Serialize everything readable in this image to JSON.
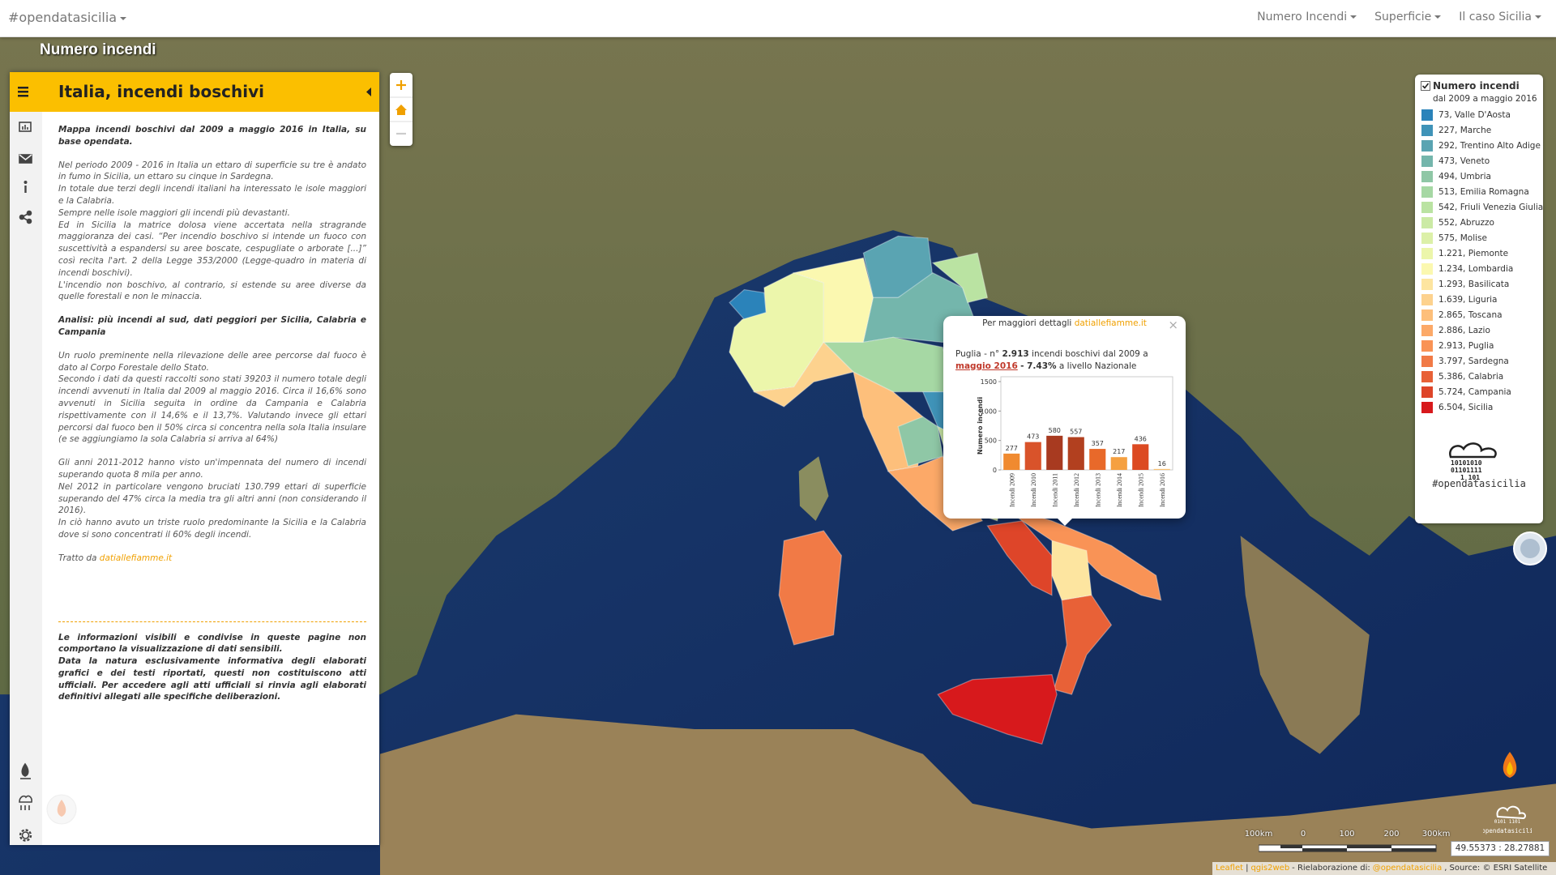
{
  "navbar": {
    "brand": "#opendatasicilia",
    "menu": [
      "Numero Incendi",
      "Superficie",
      "Il caso Sicilia"
    ]
  },
  "map_title": "Numero incendi",
  "sidebar": {
    "title": "Italia, incendi boschivi",
    "intro": "Mappa incendi boschivi dal 2009 a maggio 2016 in Italia, su base opendata.",
    "paragraph_1": [
      "Nel periodo 2009 - 2016 in Italia un ettaro di superficie su tre è andato in fumo in Sicilia, un ettaro su cinque in Sardegna.",
      "In totale due terzi degli incendi italiani ha interessato le isole maggiori e la Calabria.",
      "Sempre nelle isole maggiori gli incendi più devastanti.",
      "Ed in Sicilia la matrice dolosa viene accertata nella stragrande maggioranza dei casi. “Per incendio boschivo si intende un fuoco con suscettività a espandersi su aree boscate, cespugliate o arborate [...]” così recita l'art. 2 della Legge 353/2000 (Legge-quadro in materia di incendi boschivi).",
      "L'incendio non boschivo, al contrario, si estende su aree diverse da quelle forestali e non le minaccia."
    ],
    "heading": "Analisi: più incendi al sud, dati peggiori per Sicilia, Calabria e Campania",
    "paragraph_2": [
      "Un ruolo preminente nella rilevazione delle aree percorse dal fuoco è dato al Corpo Forestale dello Stato.",
      "Secondo i dati da questi raccolti sono stati 39203 il numero totale degli incendi avvenuti in Italia dal 2009 al maggio 2016. Circa il 16,6% sono avvenuti in Sicilia seguita in ordine da Campania e Calabria rispettivamente con il 14,6% e il 13,7%. Valutando invece gli ettari percorsi dal fuoco ben il 50% circa si concentra nella sola Italia insulare (e se aggiungiamo la sola Calabria si arriva al 64%)"
    ],
    "paragraph_3": [
      "Gli anni 2011-2012 hanno visto un'impennata del numero di incendi superando quota 8 mila per anno.",
      "Nel 2012 in particolare vengono bruciati 130.799 ettari di superficie superando del 47% circa la media tra gli altri anni (non considerando il 2016).",
      "In ciò hanno avuto un triste ruolo predominante la Sicilia e la Calabria dove si sono concentrati il 60% degli incendi."
    ],
    "source_prefix": "Tratto da",
    "source_link": "datiallefiamme.it",
    "disclaimer": [
      "Le informazioni visibili e condivise in queste pagine non comportano la visualizzazione di dati sensibili.",
      "Data la natura esclusivamente informativa degli elaborati grafici e dei testi riportati, questi non costituiscono atti ufficiali. Per accedere agli atti ufficiali si rinvia agli elaborati definitivi allegati alle specifiche deliberazioni."
    ]
  },
  "legend": {
    "title": "Numero incendi",
    "subtitle": "dal 2009 a maggio 2016",
    "logo": "#opendatasicilia",
    "items": [
      {
        "label": "73, Valle D'Aosta",
        "color": "#2b83ba"
      },
      {
        "label": "227, Marche",
        "color": "#3f93b8"
      },
      {
        "label": "292, Trentino Alto Adige",
        "color": "#5aa4b2"
      },
      {
        "label": "473, Veneto",
        "color": "#74b6ac"
      },
      {
        "label": "494, Umbria",
        "color": "#8fc7a6"
      },
      {
        "label": "513, Emilia Romagna",
        "color": "#a6d8a4"
      },
      {
        "label": "542, Friuli Venezia Giulia",
        "color": "#bae3a2"
      },
      {
        "label": "552, Abruzzo",
        "color": "#cbeaa5"
      },
      {
        "label": "575, Molise",
        "color": "#dcf0a8"
      },
      {
        "label": "1.221, Piemonte",
        "color": "#ecf6ab"
      },
      {
        "label": "1.234, Lombardia",
        "color": "#fbf8b0"
      },
      {
        "label": "1.293, Basilicata",
        "color": "#fde5a0"
      },
      {
        "label": "1.639, Liguria",
        "color": "#fdd28e"
      },
      {
        "label": "2.865, Toscana",
        "color": "#fdbf7b"
      },
      {
        "label": "2.886, Lazio",
        "color": "#fca968"
      },
      {
        "label": "2.913, Puglia",
        "color": "#f99356"
      },
      {
        "label": "3.797, Sardegna",
        "color": "#f17a46"
      },
      {
        "label": "5.386, Calabria",
        "color": "#e86137"
      },
      {
        "label": "5.724, Campania",
        "color": "#de4529"
      },
      {
        "label": "6.504, Sicilia",
        "color": "#d7191c"
      }
    ]
  },
  "popup": {
    "link_prefix": "Per maggiori dettagli",
    "link": "datiallefiamme.it",
    "region": "Puglia -",
    "count_prefix": "n°",
    "count": "2.913",
    "count_suffix": "incendi boschivi dal 2009 a",
    "period": "maggio 2016",
    "share": "- 7.43%",
    "share_suffix": "a livello Nazionale",
    "chart": {
      "type": "bar",
      "y_label": "Numero incendi",
      "categories": [
        "Incendi 2009",
        "Incendi 2010",
        "Incendi 2011",
        "Incendi 2012",
        "Incendi 2013",
        "Incendi 2014",
        "Incendi 2015",
        "Incendi 2016"
      ],
      "values": [
        277,
        473,
        580,
        557,
        357,
        217,
        436,
        16
      ],
      "colors": [
        "#f08a30",
        "#d9532a",
        "#a83a20",
        "#b2401f",
        "#e8692a",
        "#f5a040",
        "#dc4a22",
        "#f9c070"
      ],
      "ylim": [
        0,
        1500
      ],
      "yticks": [
        0,
        500,
        1000,
        1500
      ]
    }
  },
  "scale": [
    "100km",
    "0",
    "100",
    "200",
    "300km"
  ],
  "coordinates": "49.55373 : 28.27881",
  "attribution": [
    {
      "text": "Leaflet",
      "link": true
    },
    {
      "text": "|",
      "link": false
    },
    {
      "text": "qgis2web",
      "link": true
    },
    {
      "text": "- Rielaborazione di:",
      "link": false
    },
    {
      "text": "@opendatasicilia",
      "link": true
    },
    {
      "text": ", Source: © ESRI Satellite",
      "link": false
    }
  ]
}
